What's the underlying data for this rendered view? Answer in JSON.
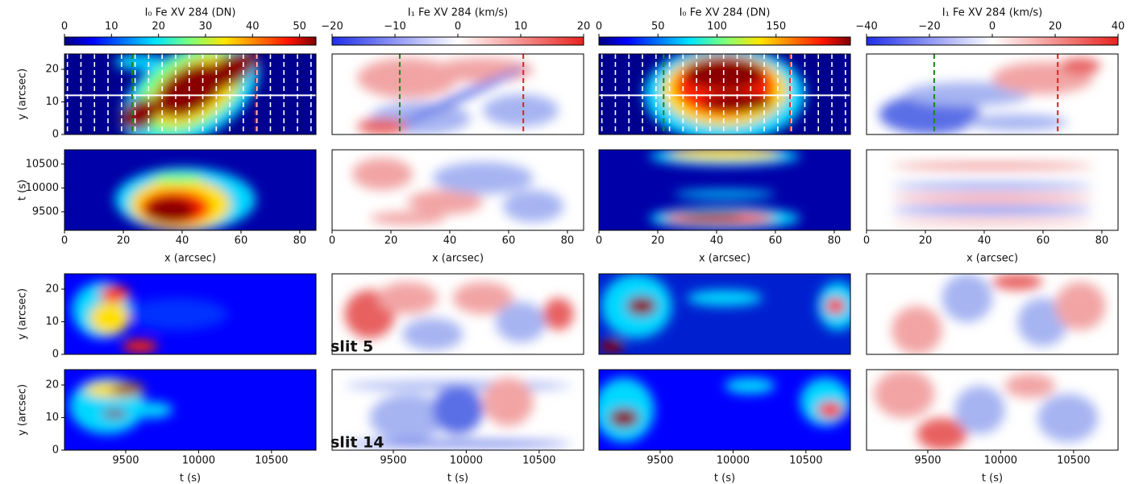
{
  "chart_data": [
    {
      "type": "heatmap",
      "colormap": "jet",
      "colorbar": {
        "label": "I₀ Fe XV 284 (DN)",
        "lim": [
          0,
          53.5
        ],
        "ticks": [
          0,
          10,
          20,
          30,
          40,
          50
        ]
      },
      "xlim": [
        0,
        85.5
      ],
      "ylim": [
        0,
        24.7
      ],
      "yticks": [
        0,
        10,
        20
      ],
      "ylabel": "y (arcsec)",
      "markers": {
        "slit_x": [
          1,
          5.6,
          10.2,
          14.8,
          19.4,
          24,
          28.6,
          33.2,
          37.8,
          42.4,
          47,
          51.6,
          56.2,
          60.8,
          65.4,
          70,
          74.6,
          79.2,
          83.8
        ],
        "green_x": 23,
        "red_x": 65,
        "hline_y": 12
      }
    },
    {
      "type": "heatmap",
      "colormap": "bwr",
      "colorbar": {
        "label": "I₁ Fe XV 284 (km/s)",
        "lim": [
          -20,
          20
        ],
        "ticks": [
          {
            "value": -20,
            "label": "−20"
          },
          {
            "value": -10,
            "label": "−10"
          },
          0,
          10,
          20
        ]
      },
      "xlim": [
        0,
        85.5
      ],
      "ylim": [
        0,
        24.7
      ],
      "markers": {
        "green_x": 23,
        "red_x": 65
      }
    },
    {
      "type": "heatmap",
      "colormap": "jet",
      "colorbar": {
        "label": "I₀ Fe XV 284 (DN)",
        "lim": [
          0,
          213
        ],
        "ticks": [
          0,
          50,
          100,
          150
        ]
      },
      "xlim": [
        0,
        85.5
      ],
      "ylim": [
        0,
        24.7
      ],
      "markers": {
        "slit_x": [
          1,
          5.6,
          10.2,
          14.8,
          19.4,
          24,
          28.6,
          33.2,
          37.8,
          42.4,
          47,
          51.6,
          56.2,
          60.8,
          65.4,
          70,
          74.6,
          79.2,
          83.8
        ],
        "green_x": 22,
        "red_x": 65,
        "hline_y": 12
      }
    },
    {
      "type": "heatmap",
      "colormap": "bwr",
      "colorbar": {
        "label": "I₁ Fe XV 284 (km/s)",
        "lim": [
          -40,
          40
        ],
        "ticks": [
          {
            "value": -40,
            "label": "−40"
          },
          {
            "value": -20,
            "label": "−20"
          },
          0,
          20,
          40
        ]
      },
      "xlim": [
        0,
        85.5
      ],
      "ylim": [
        0,
        24.7
      ],
      "markers": {
        "green_x": 23,
        "red_x": 65
      }
    },
    {
      "type": "heatmap",
      "colormap": "jet",
      "xlim": [
        0,
        85.5
      ],
      "ylim": [
        9110,
        10800
      ],
      "xticks": [
        0,
        20,
        40,
        60,
        80
      ],
      "xlabel": "x (arcsec)",
      "yticks": [
        9500,
        10000,
        10500
      ],
      "ylabel": "t (s)"
    },
    {
      "type": "heatmap",
      "colormap": "bwr",
      "xlim": [
        0,
        85.5
      ],
      "ylim": [
        9110,
        10800
      ],
      "xticks": [
        0,
        20,
        40,
        60,
        80
      ],
      "xlabel": "x (arcsec)"
    },
    {
      "type": "heatmap",
      "colormap": "jet",
      "xlim": [
        0,
        85.5
      ],
      "ylim": [
        9110,
        10800
      ],
      "xticks": [
        0,
        20,
        40,
        60,
        80
      ],
      "xlabel": "x (arcsec)"
    },
    {
      "type": "heatmap",
      "colormap": "bwr",
      "xlim": [
        0,
        85.5
      ],
      "ylim": [
        9110,
        10800
      ],
      "xticks": [
        0,
        20,
        40,
        60,
        80
      ],
      "xlabel": "x (arcsec)"
    },
    {
      "type": "heatmap",
      "colormap": "jet",
      "xlim": [
        9080,
        10805
      ],
      "ylim": [
        0,
        24.7
      ],
      "yticks": [
        0,
        10,
        20
      ],
      "ylabel": "y (arcsec)"
    },
    {
      "type": "heatmap",
      "colormap": "bwr",
      "xlim": [
        9080,
        10805
      ],
      "ylim": [
        0,
        24.7
      ],
      "annotation": "slit 5",
      "annotation_color": "#1a7a1a"
    },
    {
      "type": "heatmap",
      "colormap": "jet",
      "xlim": [
        9080,
        10805
      ],
      "ylim": [
        0,
        24.7
      ]
    },
    {
      "type": "heatmap",
      "colormap": "bwr",
      "xlim": [
        9080,
        10805
      ],
      "ylim": [
        0,
        24.7
      ]
    },
    {
      "type": "heatmap",
      "colormap": "jet",
      "xlim": [
        9080,
        10805
      ],
      "ylim": [
        0,
        24.7
      ],
      "xticks": [
        9500,
        10000,
        10500
      ],
      "xlabel": "t (s)",
      "yticks": [
        0,
        10,
        20
      ],
      "ylabel": "y (arcsec)"
    },
    {
      "type": "heatmap",
      "colormap": "bwr",
      "xlim": [
        9080,
        10805
      ],
      "ylim": [
        0,
        24.7
      ],
      "xticks": [
        9500,
        10000,
        10500
      ],
      "xlabel": "t (s)",
      "annotation": "slit 14",
      "annotation_color": "#e0201c"
    },
    {
      "type": "heatmap",
      "colormap": "jet",
      "xlim": [
        9080,
        10805
      ],
      "ylim": [
        0,
        24.7
      ],
      "xticks": [
        9500,
        10000,
        10500
      ],
      "xlabel": "t (s)"
    },
    {
      "type": "heatmap",
      "colormap": "bwr",
      "xlim": [
        9080,
        10805
      ],
      "ylim": [
        0,
        24.7
      ],
      "xticks": [
        9500,
        10000,
        10500
      ],
      "xlabel": "t (s)"
    }
  ]
}
